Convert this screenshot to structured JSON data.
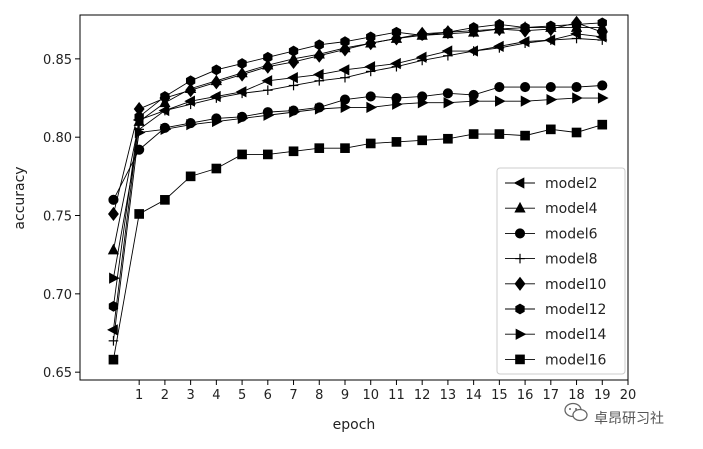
{
  "chart_data": {
    "type": "line",
    "title": "",
    "xlabel": "epoch",
    "ylabel": "accuracy",
    "xlim": [
      -1.3,
      20
    ],
    "ylim": [
      0.645,
      0.878
    ],
    "xticks": [
      "1",
      "2",
      "3",
      "4",
      "5",
      "6",
      "7",
      "8",
      "9",
      "10",
      "11",
      "12",
      "13",
      "14",
      "15",
      "16",
      "17",
      "18",
      "19",
      "20"
    ],
    "yticks": [
      "0.65",
      "0.70",
      "0.75",
      "0.80",
      "0.85"
    ],
    "legend_position": "center-right",
    "grid": false,
    "x": [
      0,
      1,
      2,
      3,
      4,
      5,
      6,
      7,
      8,
      9,
      10,
      11,
      12,
      13,
      14,
      15,
      16,
      17,
      18,
      19
    ],
    "series": [
      {
        "name": "model2",
        "marker": "triangle-left",
        "values": [
          0.677,
          0.811,
          0.817,
          0.823,
          0.826,
          0.829,
          0.836,
          0.838,
          0.84,
          0.843,
          0.845,
          0.847,
          0.851,
          0.855,
          0.855,
          0.858,
          0.861,
          0.862,
          0.866,
          0.864
        ]
      },
      {
        "name": "model4",
        "marker": "triangle-up",
        "values": [
          0.728,
          0.81,
          0.822,
          0.831,
          0.836,
          0.841,
          0.846,
          0.85,
          0.853,
          0.857,
          0.86,
          0.863,
          0.865,
          0.866,
          0.867,
          0.869,
          0.87,
          0.87,
          0.87,
          0.87
        ]
      },
      {
        "name": "model6",
        "marker": "circle",
        "values": [
          0.76,
          0.792,
          0.806,
          0.809,
          0.812,
          0.813,
          0.816,
          0.817,
          0.819,
          0.824,
          0.826,
          0.825,
          0.826,
          0.828,
          0.827,
          0.832,
          0.832,
          0.832,
          0.832,
          0.833
        ]
      },
      {
        "name": "model8",
        "marker": "plus",
        "values": [
          0.67,
          0.805,
          0.817,
          0.821,
          0.825,
          0.828,
          0.83,
          0.833,
          0.836,
          0.838,
          0.842,
          0.845,
          0.849,
          0.852,
          0.855,
          0.857,
          0.86,
          0.862,
          0.863,
          0.862
        ]
      },
      {
        "name": "model10",
        "marker": "diamond",
        "values": [
          0.751,
          0.818,
          0.825,
          0.83,
          0.835,
          0.84,
          0.845,
          0.848,
          0.852,
          0.856,
          0.86,
          0.863,
          0.866,
          0.867,
          0.868,
          0.869,
          0.868,
          0.869,
          0.873,
          0.867
        ]
      },
      {
        "name": "model12",
        "marker": "hexagon",
        "values": [
          0.692,
          0.813,
          0.826,
          0.836,
          0.843,
          0.847,
          0.851,
          0.855,
          0.859,
          0.861,
          0.864,
          0.867,
          0.865,
          0.867,
          0.87,
          0.872,
          0.87,
          0.871,
          0.872,
          0.873
        ]
      },
      {
        "name": "model14",
        "marker": "triangle-right",
        "values": [
          0.71,
          0.803,
          0.805,
          0.808,
          0.81,
          0.812,
          0.814,
          0.816,
          0.818,
          0.819,
          0.819,
          0.821,
          0.822,
          0.822,
          0.823,
          0.823,
          0.823,
          0.824,
          0.825,
          0.825
        ]
      },
      {
        "name": "model16",
        "marker": "square",
        "values": [
          0.658,
          0.751,
          0.76,
          0.775,
          0.78,
          0.789,
          0.789,
          0.791,
          0.793,
          0.793,
          0.796,
          0.797,
          0.798,
          0.799,
          0.802,
          0.802,
          0.801,
          0.805,
          0.803,
          0.808
        ]
      }
    ]
  },
  "watermark": {
    "icon": "wechat-icon",
    "text": "卓昂研习社"
  }
}
